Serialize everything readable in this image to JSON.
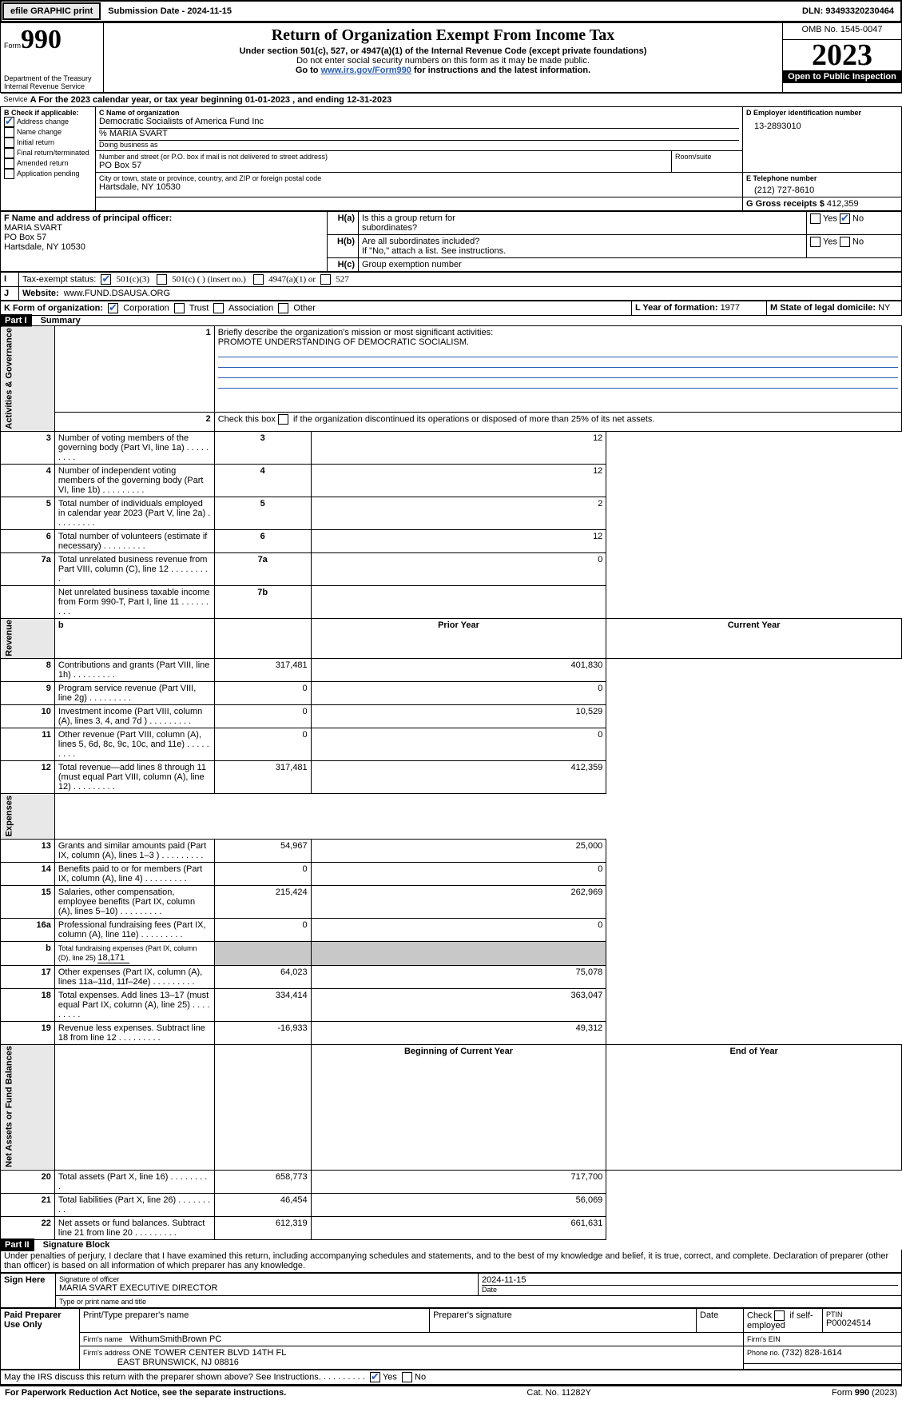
{
  "topbar": {
    "efile": "efile GRAPHIC print",
    "submission": "Submission Date - 2024-11-15",
    "dln": "DLN: 93493320230464"
  },
  "header": {
    "form_prefix": "Form",
    "form_num": "990",
    "dept": "Department of the Treasury",
    "irs": "Internal Revenue Service",
    "title": "Return of Organization Exempt From Income Tax",
    "subtitle": "Under section 501(c), 527, or 4947(a)(1) of the Internal Revenue Code (except private foundations)",
    "note1": "Do not enter social security numbers on this form as it may be made public.",
    "note2_prefix": "Go to ",
    "note2_link": "www.irs.gov/Form990",
    "note2_suffix": " for instructions and the latest information.",
    "omb": "OMB No. 1545-0047",
    "year": "2023",
    "openpub": "Open to Public Inspection"
  },
  "A": {
    "prefix": "For the 2023 calendar year, or tax year beginning ",
    "begin": "01-01-2023",
    "mid": " , and ending ",
    "end": "12-31-2023",
    "service": "Service"
  },
  "B": {
    "label": "B Check if applicable:",
    "items": [
      {
        "label": "Address change",
        "checked": true
      },
      {
        "label": "Name change",
        "checked": false
      },
      {
        "label": "Initial return",
        "checked": false
      },
      {
        "label": "Final return/terminated",
        "checked": false
      },
      {
        "label": "Amended return",
        "checked": false
      },
      {
        "label": "Application pending",
        "checked": false
      }
    ]
  },
  "C": {
    "name_label": "C Name of organization",
    "name": "Democratic Socialists of America Fund Inc",
    "care": "% MARIA SVART",
    "dba_label": "Doing business as",
    "dba": "",
    "street_label": "Number and street (or P.O. box if mail is not delivered to street address)",
    "room_label": "Room/suite",
    "street": "PO Box 57",
    "city_label": "City or town, state or province, country, and ZIP or foreign postal code",
    "city": "Hartsdale, NY  10530"
  },
  "D": {
    "label": "D Employer identification number",
    "value": "13-2893010"
  },
  "E": {
    "label": "E Telephone number",
    "value": "(212) 727-8610"
  },
  "G": {
    "label": "G Gross receipts $ ",
    "value": "412,359"
  },
  "F": {
    "label": "F  Name and address of principal officer:",
    "name": "MARIA SVART",
    "street": "PO Box 57",
    "city": "Hartsdale, NY  10530"
  },
  "H": {
    "a_label": "Is this a group return for",
    "a_label2": "subordinates?",
    "a_yes": "Yes",
    "a_no": "No",
    "b_label": "Are all subordinates included?",
    "b_yes": "Yes",
    "b_no": "No",
    "b_note": "If \"No,\" attach a list. See instructions.",
    "c_label": "Group exemption number",
    "a_prefix": "H(a)",
    "b_prefix": "H(b)",
    "c_prefix": "H(c)"
  },
  "I": {
    "label": "Tax-exempt status:",
    "c3": "501(c)(3)",
    "c": "501(c) (  ) (insert no.)",
    "a1": "4947(a)(1) or",
    "s527": "527"
  },
  "J": {
    "label": "Website:",
    "value": "www.FUND.DSAUSA.ORG"
  },
  "K": {
    "label": "K Form of organization:",
    "corp": "Corporation",
    "trust": "Trust",
    "assoc": "Association",
    "other": "Other"
  },
  "L": {
    "label": "L Year of formation: ",
    "value": "1977"
  },
  "M": {
    "label": "M State of legal domicile: ",
    "value": "NY"
  },
  "part1": {
    "title": "Part I",
    "subtitle": "Summary"
  },
  "sec_labels": {
    "gov": "Activities & Governance",
    "rev": "Revenue",
    "exp": "Expenses",
    "net": "Net Assets or Fund Balances"
  },
  "q1": {
    "label": "Briefly describe the organization's mission or most significant activities:",
    "text": "PROMOTE UNDERSTANDING OF DEMOCRATIC SOCIALISM."
  },
  "q2": "Check this box        if the organization discontinued its operations or disposed of more than 25% of its net assets.",
  "gov_rows": [
    {
      "n": "3",
      "label": "Number of voting members of the governing body (Part VI, line 1a)",
      "box": "3",
      "val": "12"
    },
    {
      "n": "4",
      "label": "Number of independent voting members of the governing body (Part VI, line 1b)",
      "box": "4",
      "val": "12"
    },
    {
      "n": "5",
      "label": "Total number of individuals employed in calendar year 2023 (Part V, line 2a)",
      "box": "5",
      "val": "2"
    },
    {
      "n": "6",
      "label": "Total number of volunteers (estimate if necessary)",
      "box": "6",
      "val": "12"
    },
    {
      "n": "7a",
      "label": "Total unrelated business revenue from Part VIII, column (C), line 12",
      "box": "7a",
      "val": "0"
    },
    {
      "n": "",
      "label": "Net unrelated business taxable income from Form 990-T, Part I, line 11",
      "box": "7b",
      "val": ""
    }
  ],
  "col_hdr": {
    "b": "b",
    "prior": "Prior Year",
    "current": "Current Year"
  },
  "rev_rows": [
    {
      "n": "8",
      "label": "Contributions and grants (Part VIII, line 1h)",
      "prior": "317,481",
      "curr": "401,830"
    },
    {
      "n": "9",
      "label": "Program service revenue (Part VIII, line 2g)",
      "prior": "0",
      "curr": "0"
    },
    {
      "n": "10",
      "label": "Investment income (Part VIII, column (A), lines 3, 4, and 7d )",
      "prior": "0",
      "curr": "10,529"
    },
    {
      "n": "11",
      "label": "Other revenue (Part VIII, column (A), lines 5, 6d, 8c, 9c, 10c, and 11e)",
      "prior": "0",
      "curr": "0"
    },
    {
      "n": "12",
      "label": "Total revenue—add lines 8 through 11 (must equal Part VIII, column (A), line 12)",
      "prior": "317,481",
      "curr": "412,359"
    }
  ],
  "exp_rows": [
    {
      "n": "13",
      "label": "Grants and similar amounts paid (Part IX, column (A), lines 1–3 )",
      "prior": "54,967",
      "curr": "25,000"
    },
    {
      "n": "14",
      "label": "Benefits paid to or for members (Part IX, column (A), line 4)",
      "prior": "0",
      "curr": "0"
    },
    {
      "n": "15",
      "label": "Salaries, other compensation, employee benefits (Part IX, column (A), lines 5–10)",
      "prior": "215,424",
      "curr": "262,969"
    },
    {
      "n": "16a",
      "label": "Professional fundraising fees (Part IX, column (A), line 11e)",
      "prior": "0",
      "curr": "0"
    },
    {
      "n": "b",
      "label": "Total fundraising expenses (Part IX, column (D), line 25) ",
      "val": "18,171",
      "grey": true
    },
    {
      "n": "17",
      "label": "Other expenses (Part IX, column (A), lines 11a–11d, 11f–24e)",
      "prior": "64,023",
      "curr": "75,078"
    },
    {
      "n": "18",
      "label": "Total expenses. Add lines 13–17 (must equal Part IX, column (A), line 25)",
      "prior": "334,414",
      "curr": "363,047"
    },
    {
      "n": "19",
      "label": "Revenue less expenses. Subtract line 18 from line 12",
      "prior": "-16,933",
      "curr": "49,312"
    }
  ],
  "net_hdr": {
    "begin": "Beginning of Current Year",
    "end": "End of Year"
  },
  "net_rows": [
    {
      "n": "20",
      "label": "Total assets (Part X, line 16)",
      "prior": "658,773",
      "curr": "717,700"
    },
    {
      "n": "21",
      "label": "Total liabilities (Part X, line 26)",
      "prior": "46,454",
      "curr": "56,069"
    },
    {
      "n": "22",
      "label": "Net assets or fund balances. Subtract line 21 from line 20",
      "prior": "612,319",
      "curr": "661,631"
    }
  ],
  "part2": {
    "title": "Part II",
    "subtitle": "Signature Block"
  },
  "perjury": "Under penalties of perjury, I declare that I have examined this return, including accompanying schedules and statements, and to the best of my knowledge and belief, it is true, correct, and complete. Declaration of preparer (other than officer) is based on all information of which preparer has any knowledge.",
  "sign": {
    "here": "Sign Here",
    "sig_label": "Signature of officer",
    "date_label": "Date",
    "date": "2024-11-15",
    "name": "MARIA SVART EXECUTIVE DIRECTOR",
    "name_label": "Type or print name and title"
  },
  "paid": {
    "title": "Paid Preparer Use Only",
    "h1": "Print/Type preparer's name",
    "h2": "Preparer's signature",
    "h3": "Date",
    "h4a": "Check",
    "h4b": "if self-employed",
    "h5": "PTIN",
    "ptin": "P00024514",
    "firm_label": "Firm's name",
    "firm": "WithumSmithBrown PC",
    "ein_label": "Firm's EIN",
    "addr_label": "Firm's address",
    "addr1": "ONE TOWER CENTER BLVD 14TH FL",
    "addr2": "EAST BRUNSWICK, NJ  08816",
    "phone_label": "Phone no. ",
    "phone": "(732) 828-1614"
  },
  "discuss": {
    "q": "May the IRS discuss this return with the preparer shown above? See Instructions.",
    "yes": "Yes",
    "no": "No"
  },
  "footer": {
    "left": "For Paperwork Reduction Act Notice, see the separate instructions.",
    "mid": "Cat. No. 11282Y",
    "right_prefix": "Form ",
    "right_form": "990",
    "right_year": " (2023)"
  }
}
